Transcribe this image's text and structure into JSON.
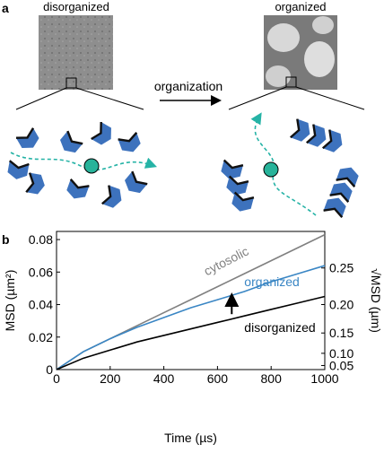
{
  "panel_a": {
    "label": "a",
    "left_title": "disorganized",
    "right_title": "organized",
    "arrow_label": "organization"
  },
  "chart_data": {
    "type": "line",
    "panel_label": "b",
    "x_label": "Time (µs)",
    "y_label": "MSD (µm²)",
    "y2_label": "√MSD (µm)",
    "x": [
      0,
      100,
      200,
      300,
      400,
      500,
      600,
      700,
      800,
      900,
      1000
    ],
    "xlim": [
      0,
      1000
    ],
    "xticks": [
      0,
      200,
      400,
      600,
      800,
      1000
    ],
    "ylim": [
      0,
      0.085
    ],
    "yticks": [
      0,
      0.02,
      0.04,
      0.06,
      0.08
    ],
    "y2lim": [
      0,
      0.2915
    ],
    "y2scale": "sqrt",
    "y2ticks": [
      0.05,
      {
        "value": 0.1,
        "label": "0.10"
      },
      0.15,
      {
        "value": 0.2,
        "label": "0.20"
      },
      0.25
    ],
    "series": [
      {
        "name": "cytosolic",
        "color": "#808080",
        "values": [
          0,
          0.011,
          0.019,
          0.027,
          0.035,
          0.043,
          0.051,
          0.059,
          0.067,
          0.075,
          0.083
        ]
      },
      {
        "name": "organized",
        "color": "#3a86c4",
        "values": [
          0,
          0.011,
          0.019,
          0.026,
          0.032,
          0.038,
          0.043,
          0.048,
          0.054,
          0.059,
          0.064
        ]
      },
      {
        "name": "disorganized",
        "color": "#000000",
        "values": [
          0,
          0.007,
          0.012,
          0.017,
          0.021,
          0.025,
          0.029,
          0.033,
          0.037,
          0.041,
          0.045
        ]
      }
    ]
  }
}
